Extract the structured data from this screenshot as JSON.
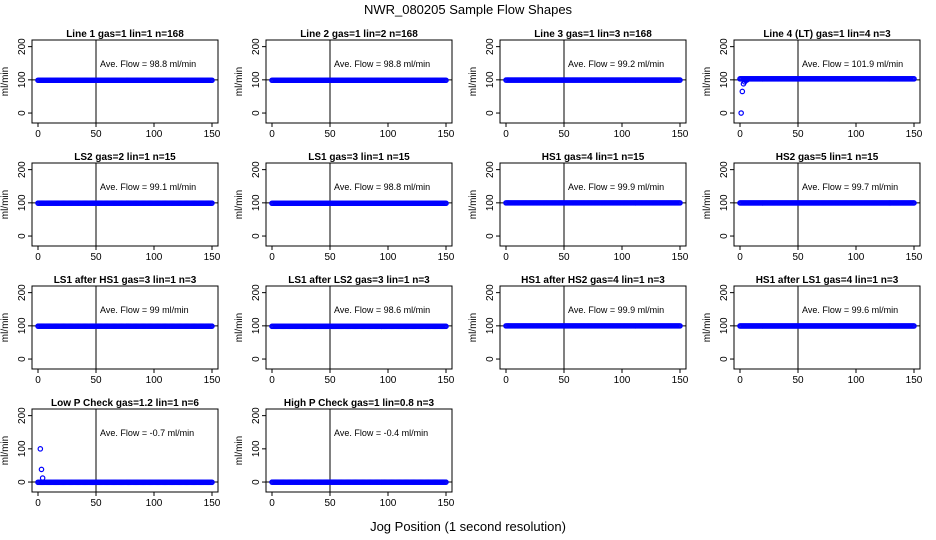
{
  "figure": {
    "title": "NWR_080205  Sample Flow Shapes",
    "xlabel": "Jog Position (1 second resolution)"
  },
  "colors": {
    "points": "#0000ff",
    "axes": "#000000",
    "background": "#ffffff"
  },
  "chart_data": [
    {
      "type": "scatter",
      "title": "Line 1 gas=1 lin=1 n=168",
      "ylabel": "ml/min",
      "annotation": "Ave. Flow = 98.8 ml/min",
      "xticks": [
        0,
        50,
        100,
        150
      ],
      "yticks": [
        0,
        100,
        200
      ],
      "xlim": [
        0,
        150
      ],
      "ylim": [
        -30,
        220
      ],
      "vline_x": 50,
      "hline_y": 100,
      "series": [
        {
          "x_range": [
            0,
            150
          ],
          "values_constant": 98.8
        }
      ]
    },
    {
      "type": "scatter",
      "title": "Line 2 gas=1 lin=2 n=168",
      "ylabel": "ml/min",
      "annotation": "Ave. Flow = 98.8 ml/min",
      "xticks": [
        0,
        50,
        100,
        150
      ],
      "yticks": [
        0,
        100,
        200
      ],
      "xlim": [
        0,
        150
      ],
      "ylim": [
        -30,
        220
      ],
      "vline_x": 50,
      "hline_y": 100,
      "series": [
        {
          "x_range": [
            0,
            150
          ],
          "values_constant": 98.8
        }
      ]
    },
    {
      "type": "scatter",
      "title": "Line 3 gas=1 lin=3 n=168",
      "ylabel": "ml/min",
      "annotation": "Ave. Flow = 99.2 ml/min",
      "xticks": [
        0,
        50,
        100,
        150
      ],
      "yticks": [
        0,
        100,
        200
      ],
      "xlim": [
        0,
        150
      ],
      "ylim": [
        -30,
        220
      ],
      "vline_x": 50,
      "hline_y": 100,
      "series": [
        {
          "x_range": [
            0,
            150
          ],
          "values_constant": 99.2
        }
      ]
    },
    {
      "type": "scatter",
      "title": "Line 4 (LT) gas=1 lin=4 n=3",
      "ylabel": "ml/min",
      "annotation": "Ave. Flow = 101.9 ml/min",
      "xticks": [
        0,
        50,
        100,
        150
      ],
      "yticks": [
        0,
        100,
        200
      ],
      "xlim": [
        0,
        150
      ],
      "ylim": [
        -30,
        220
      ],
      "vline_x": 50,
      "hline_y": 100,
      "series": [
        {
          "x_range": [
            0,
            150
          ],
          "values_constant": 103,
          "extra_points": [
            [
              1,
              0
            ],
            [
              2,
              65
            ],
            [
              3,
              88
            ],
            [
              4,
              94
            ],
            [
              5,
              98
            ],
            [
              6,
              100
            ]
          ]
        }
      ]
    },
    {
      "type": "scatter",
      "title": "LS2 gas=2 lin=1 n=15",
      "ylabel": "ml/min",
      "annotation": "Ave. Flow = 99.1 ml/min",
      "xticks": [
        0,
        50,
        100,
        150
      ],
      "yticks": [
        0,
        100,
        200
      ],
      "xlim": [
        0,
        150
      ],
      "ylim": [
        -30,
        220
      ],
      "vline_x": 50,
      "hline_y": 100,
      "series": [
        {
          "x_range": [
            0,
            150
          ],
          "values_constant": 99.1
        }
      ]
    },
    {
      "type": "scatter",
      "title": "LS1 gas=3 lin=1 n=15",
      "ylabel": "ml/min",
      "annotation": "Ave. Flow = 98.8 ml/min",
      "xticks": [
        0,
        50,
        100,
        150
      ],
      "yticks": [
        0,
        100,
        200
      ],
      "xlim": [
        0,
        150
      ],
      "ylim": [
        -30,
        220
      ],
      "vline_x": 50,
      "hline_y": 100,
      "series": [
        {
          "x_range": [
            0,
            150
          ],
          "values_constant": 98.8
        }
      ]
    },
    {
      "type": "scatter",
      "title": "HS1 gas=4 lin=1 n=15",
      "ylabel": "ml/min",
      "annotation": "Ave. Flow = 99.9 ml/min",
      "xticks": [
        0,
        50,
        100,
        150
      ],
      "yticks": [
        0,
        100,
        200
      ],
      "xlim": [
        0,
        150
      ],
      "ylim": [
        -30,
        220
      ],
      "vline_x": 50,
      "hline_y": 100,
      "series": [
        {
          "x_range": [
            0,
            150
          ],
          "values_constant": 99.9
        }
      ]
    },
    {
      "type": "scatter",
      "title": "HS2 gas=5 lin=1 n=15",
      "ylabel": "ml/min",
      "annotation": "Ave. Flow = 99.7 ml/min",
      "xticks": [
        0,
        50,
        100,
        150
      ],
      "yticks": [
        0,
        100,
        200
      ],
      "xlim": [
        0,
        150
      ],
      "ylim": [
        -30,
        220
      ],
      "vline_x": 50,
      "hline_y": 100,
      "series": [
        {
          "x_range": [
            0,
            150
          ],
          "values_constant": 99.7
        }
      ]
    },
    {
      "type": "scatter",
      "title": "LS1 after HS1 gas=3 lin=1 n=3",
      "ylabel": "ml/min",
      "annotation": "Ave. Flow = 99 ml/min",
      "xticks": [
        0,
        50,
        100,
        150
      ],
      "yticks": [
        0,
        100,
        200
      ],
      "xlim": [
        0,
        150
      ],
      "ylim": [
        -30,
        220
      ],
      "vline_x": 50,
      "hline_y": 100,
      "series": [
        {
          "x_range": [
            0,
            150
          ],
          "values_constant": 99
        }
      ]
    },
    {
      "type": "scatter",
      "title": "LS1 after LS2 gas=3 lin=1 n=3",
      "ylabel": "ml/min",
      "annotation": "Ave. Flow = 98.6 ml/min",
      "xticks": [
        0,
        50,
        100,
        150
      ],
      "yticks": [
        0,
        100,
        200
      ],
      "xlim": [
        0,
        150
      ],
      "ylim": [
        -30,
        220
      ],
      "vline_x": 50,
      "hline_y": 100,
      "series": [
        {
          "x_range": [
            0,
            150
          ],
          "values_constant": 98.6
        }
      ]
    },
    {
      "type": "scatter",
      "title": "HS1 after HS2 gas=4 lin=1 n=3",
      "ylabel": "ml/min",
      "annotation": "Ave. Flow = 99.9 ml/min",
      "xticks": [
        0,
        50,
        100,
        150
      ],
      "yticks": [
        0,
        100,
        200
      ],
      "xlim": [
        0,
        150
      ],
      "ylim": [
        -30,
        220
      ],
      "vline_x": 50,
      "hline_y": 100,
      "series": [
        {
          "x_range": [
            0,
            150
          ],
          "values_constant": 99.9
        }
      ]
    },
    {
      "type": "scatter",
      "title": "HS1 after LS1 gas=4 lin=1 n=3",
      "ylabel": "ml/min",
      "annotation": "Ave. Flow = 99.6 ml/min",
      "xticks": [
        0,
        50,
        100,
        150
      ],
      "yticks": [
        0,
        100,
        200
      ],
      "xlim": [
        0,
        150
      ],
      "ylim": [
        -30,
        220
      ],
      "vline_x": 50,
      "hline_y": 100,
      "series": [
        {
          "x_range": [
            0,
            150
          ],
          "values_constant": 99.6
        }
      ]
    },
    {
      "type": "scatter",
      "title": "Low P Check gas=1.2 lin=1 n=6",
      "ylabel": "ml/min",
      "annotation": "Ave. Flow = -0.7 ml/min",
      "xticks": [
        0,
        50,
        100,
        150
      ],
      "yticks": [
        0,
        100,
        200
      ],
      "xlim": [
        0,
        150
      ],
      "ylim": [
        -30,
        220
      ],
      "vline_x": 50,
      "hline_y": 0,
      "series": [
        {
          "x_range": [
            0,
            150
          ],
          "values_constant": -0.7,
          "extra_points": [
            [
              2,
              100
            ],
            [
              3,
              38
            ],
            [
              4,
              12
            ]
          ]
        }
      ]
    },
    {
      "type": "scatter",
      "title": "High P Check gas=1 lin=0.8 n=3",
      "ylabel": "ml/min",
      "annotation": "Ave. Flow = -0.4 ml/min",
      "xticks": [
        0,
        50,
        100,
        150
      ],
      "yticks": [
        0,
        100,
        200
      ],
      "xlim": [
        0,
        150
      ],
      "ylim": [
        -30,
        220
      ],
      "vline_x": 50,
      "hline_y": 0,
      "series": [
        {
          "x_range": [
            0,
            150
          ],
          "values_constant": -0.4
        }
      ]
    }
  ]
}
